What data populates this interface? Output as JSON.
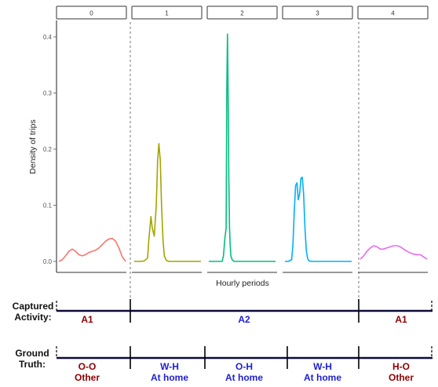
{
  "chart_data": {
    "type": "area",
    "panels": [
      "0",
      "1",
      "2",
      "3",
      "4"
    ],
    "xlabel": "Hourly periods",
    "ylabel": "Density of trips",
    "ylim": [
      0,
      0.4
    ],
    "yticks": [
      "0.0",
      "0.1",
      "0.2",
      "0.3",
      "0.4"
    ],
    "grid": false,
    "legend": "none",
    "series": [
      {
        "panel": "0",
        "color": "#f8766d",
        "x": [
          0.0,
          0.05,
          0.1,
          0.15,
          0.2,
          0.25,
          0.3,
          0.35,
          0.4,
          0.45,
          0.5,
          0.55,
          0.6,
          0.65,
          0.7,
          0.75,
          0.8,
          0.85,
          0.9,
          0.95,
          1.0
        ],
        "y": [
          0.0,
          0.003,
          0.01,
          0.018,
          0.022,
          0.018,
          0.012,
          0.01,
          0.012,
          0.016,
          0.018,
          0.02,
          0.024,
          0.03,
          0.036,
          0.04,
          0.041,
          0.036,
          0.024,
          0.008,
          0.0
        ]
      },
      {
        "panel": "1",
        "color": "#a3a500",
        "x": [
          0.0,
          0.1,
          0.15,
          0.2,
          0.22,
          0.25,
          0.27,
          0.3,
          0.33,
          0.35,
          0.37,
          0.39,
          0.41,
          0.43,
          0.45,
          0.48,
          0.52,
          0.6,
          1.0
        ],
        "y": [
          0.0,
          0.0,
          0.001,
          0.006,
          0.04,
          0.08,
          0.06,
          0.045,
          0.1,
          0.18,
          0.21,
          0.18,
          0.1,
          0.04,
          0.01,
          0.002,
          0.0,
          0.0,
          0.0
        ]
      },
      {
        "panel": "2",
        "color": "#00bf7d",
        "x": [
          0.0,
          0.1,
          0.2,
          0.22,
          0.24,
          0.26,
          0.27,
          0.28,
          0.29,
          0.3,
          0.31,
          0.32,
          0.33,
          0.35,
          0.38,
          0.45,
          1.0
        ],
        "y": [
          0.0,
          0.0,
          0.0,
          0.01,
          0.04,
          0.06,
          0.3,
          0.405,
          0.3,
          0.15,
          0.06,
          0.03,
          0.01,
          0.003,
          0.0,
          0.0,
          0.0
        ]
      },
      {
        "panel": "3",
        "color": "#00b0f6",
        "x": [
          0.0,
          0.05,
          0.1,
          0.12,
          0.14,
          0.16,
          0.18,
          0.2,
          0.22,
          0.24,
          0.26,
          0.28,
          0.3,
          0.32,
          0.34,
          0.36,
          0.4,
          0.5,
          1.0
        ],
        "y": [
          0.0,
          0.0,
          0.003,
          0.03,
          0.09,
          0.135,
          0.14,
          0.11,
          0.12,
          0.148,
          0.15,
          0.12,
          0.06,
          0.02,
          0.005,
          0.001,
          0.0,
          0.0,
          0.0
        ]
      },
      {
        "panel": "4",
        "color": "#e76bf3",
        "x": [
          0.0,
          0.05,
          0.1,
          0.15,
          0.2,
          0.25,
          0.3,
          0.35,
          0.4,
          0.45,
          0.5,
          0.55,
          0.6,
          0.65,
          0.7,
          0.75,
          0.8,
          0.85,
          0.9,
          0.95,
          1.0
        ],
        "y": [
          0.004,
          0.01,
          0.018,
          0.024,
          0.028,
          0.026,
          0.022,
          0.022,
          0.024,
          0.026,
          0.028,
          0.028,
          0.026,
          0.022,
          0.018,
          0.015,
          0.013,
          0.012,
          0.012,
          0.008,
          0.004
        ]
      }
    ]
  },
  "captured_activity": {
    "label": "Captured Activity:",
    "segments": [
      {
        "label": "A1",
        "color": "#8b0000"
      },
      {
        "label": "A2",
        "color": "#1f1fd0"
      },
      {
        "label": "A1",
        "color": "#8b0000"
      }
    ]
  },
  "ground_truth": {
    "label": "Ground Truth:",
    "segments": [
      {
        "code": "O-O",
        "place": "Other",
        "color": "#8b0000"
      },
      {
        "code": "W-H",
        "place": "At home",
        "color": "#1f1fd0"
      },
      {
        "code": "O-H",
        "place": "At home",
        "color": "#1f1fd0"
      },
      {
        "code": "W-H",
        "place": "At home",
        "color": "#1f1fd0"
      },
      {
        "code": "H-O",
        "place": "Other",
        "color": "#8b0000"
      }
    ]
  }
}
